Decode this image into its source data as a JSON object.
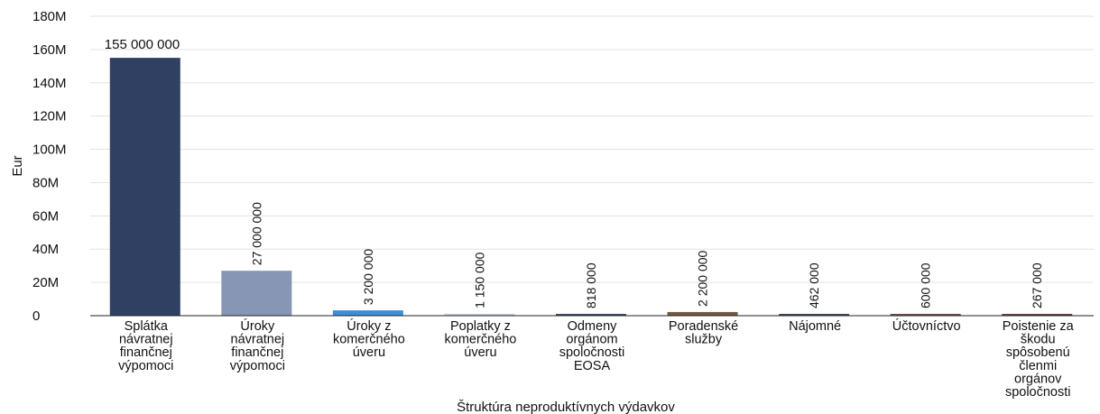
{
  "chart_data": {
    "type": "bar",
    "title": "",
    "xlabel": "Štruktúra neproduktívnych výdavkov",
    "ylabel": "Eur",
    "ylim": [
      0,
      180000000
    ],
    "yticks": [
      0,
      20000000,
      40000000,
      60000000,
      80000000,
      100000000,
      120000000,
      140000000,
      160000000,
      180000000
    ],
    "ytick_labels": [
      "0",
      "20M",
      "40M",
      "60M",
      "80M",
      "100M",
      "120M",
      "140M",
      "160M",
      "180M"
    ],
    "grid": true,
    "legend": "none",
    "categories": [
      [
        "Splátka",
        "návratnej",
        "finančnej",
        "výpomoci"
      ],
      [
        "Úroky",
        "návratnej",
        "finančnej",
        "výpomoci"
      ],
      [
        "Úroky z",
        "komerčného",
        "úveru"
      ],
      [
        "Poplatky z",
        "komerčného",
        "úveru"
      ],
      [
        "Odmeny",
        "orgánom",
        "spoločnosti",
        "EOSA"
      ],
      [
        "Poradenské",
        "služby"
      ],
      [
        "Nájomné"
      ],
      [
        "Účtovníctvo"
      ],
      [
        "Poistenie za",
        "škodu",
        "spôsobenú",
        "členmi",
        "orgánov",
        "spoločnosti"
      ]
    ],
    "values": [
      155000000,
      27000000,
      3200000,
      1150000,
      818000,
      2200000,
      462000,
      600000,
      267000
    ],
    "value_labels": [
      "155 000 000",
      "27 000 000",
      "3 200 000",
      "1 150 000",
      "818 000",
      "2 200 000",
      "462 000",
      "600 000",
      "267 000"
    ],
    "colors": [
      "#2f4063",
      "#8796b4",
      "#3a8fe0",
      "#c2cde0",
      "#3c4b66",
      "#6e5a3e",
      "#3d4658",
      "#6e4a4a",
      "#6e3c3c"
    ]
  }
}
